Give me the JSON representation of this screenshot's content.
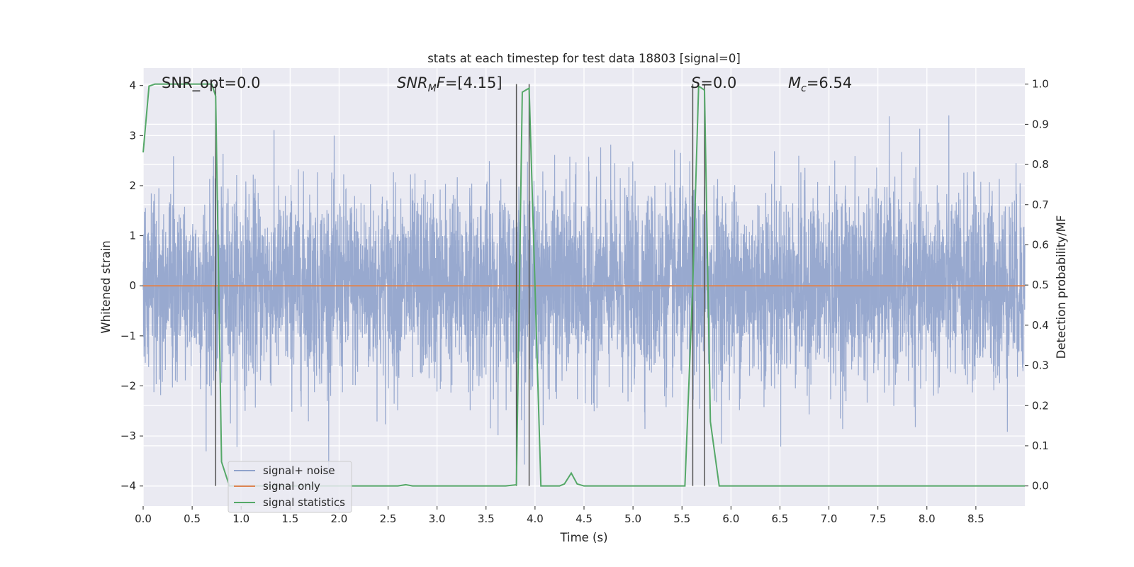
{
  "chart_data": {
    "type": "line",
    "title": "stats at each timestep for test data 18803 [signal=0]",
    "xlabel": "Time (s)",
    "ylabel_left": "Whitened strain",
    "ylabel_right": "Detection probability/MF",
    "xlim": [
      0.0,
      9.0
    ],
    "ylim_left": [
      -4.4,
      4.35
    ],
    "ylim_right": [
      -0.05,
      1.04
    ],
    "x_ticks": [
      "0.0",
      "0.5",
      "1.0",
      "1.5",
      "2.0",
      "2.5",
      "3.0",
      "3.5",
      "4.0",
      "4.5",
      "5.0",
      "5.5",
      "6.0",
      "6.5",
      "7.0",
      "7.5",
      "8.0",
      "8.5"
    ],
    "y_ticks_left": [
      "4",
      "3",
      "2",
      "1",
      "0",
      "−1",
      "−2",
      "−3",
      "−4"
    ],
    "y_ticks_right": [
      "1.0",
      "0.9",
      "0.8",
      "0.7",
      "0.6",
      "0.5",
      "0.4",
      "0.3",
      "0.2",
      "0.1",
      "0.0"
    ],
    "grid": true,
    "legend_position": "lower-left",
    "annotations": [
      {
        "parts": [
          {
            "t": "SNR_opt=0.0",
            "i": false
          }
        ]
      },
      {
        "parts": [
          {
            "t": "SNR",
            "i": true
          },
          {
            "t": "M",
            "i": true,
            "sub": true
          },
          {
            "t": "F",
            "i": true
          },
          {
            "t": "=[4.15]",
            "i": false
          }
        ]
      },
      {
        "parts": [
          {
            "t": "S",
            "i": true
          },
          {
            "t": "=0.0",
            "i": false
          }
        ]
      },
      {
        "parts": [
          {
            "t": "M",
            "i": true
          },
          {
            "t": "c",
            "i": true,
            "sub": true
          },
          {
            "t": "=6.54",
            "i": false
          }
        ]
      }
    ],
    "series": [
      {
        "name": "signal+ noise",
        "color": "#8fa2cb",
        "axis": "left",
        "note": "noise band, typical amplitude about ±1.5, peaks to about ±3.9",
        "sample_rate_hz": 2048,
        "duration_s": 9.0
      },
      {
        "name": "signal only",
        "color": "#dd8452",
        "axis": "left",
        "x": [
          0.0,
          9.0
        ],
        "y": [
          0.0,
          0.0
        ]
      },
      {
        "name": "signal statistics",
        "color": "#55a868",
        "axis": "right",
        "x": [
          0.0,
          0.06,
          0.12,
          0.7,
          0.74,
          0.8,
          0.88,
          1.0,
          2.5,
          2.6,
          2.68,
          2.75,
          3.7,
          3.81,
          3.87,
          3.94,
          4.06,
          4.25,
          4.3,
          4.37,
          4.43,
          4.5,
          5.53,
          5.61,
          5.67,
          5.73,
          5.79,
          5.88,
          9.0
        ],
        "y": [
          0.83,
          0.995,
          1.0,
          1.0,
          0.97,
          0.06,
          0.0,
          0.0,
          0.0,
          0.0,
          0.003,
          0.0,
          0.0,
          0.003,
          0.98,
          0.99,
          0.0,
          0.0,
          0.005,
          0.032,
          0.005,
          0.0,
          0.0,
          0.5,
          0.995,
          0.985,
          0.16,
          0.0,
          0.0
        ]
      }
    ],
    "vertical_lines": [
      {
        "x": 0.74,
        "color": "#555555"
      },
      {
        "x": 3.81,
        "color": "#555555"
      },
      {
        "x": 3.94,
        "color": "#555555"
      },
      {
        "x": 5.61,
        "color": "#555555"
      },
      {
        "x": 5.73,
        "color": "#555555"
      }
    ]
  }
}
